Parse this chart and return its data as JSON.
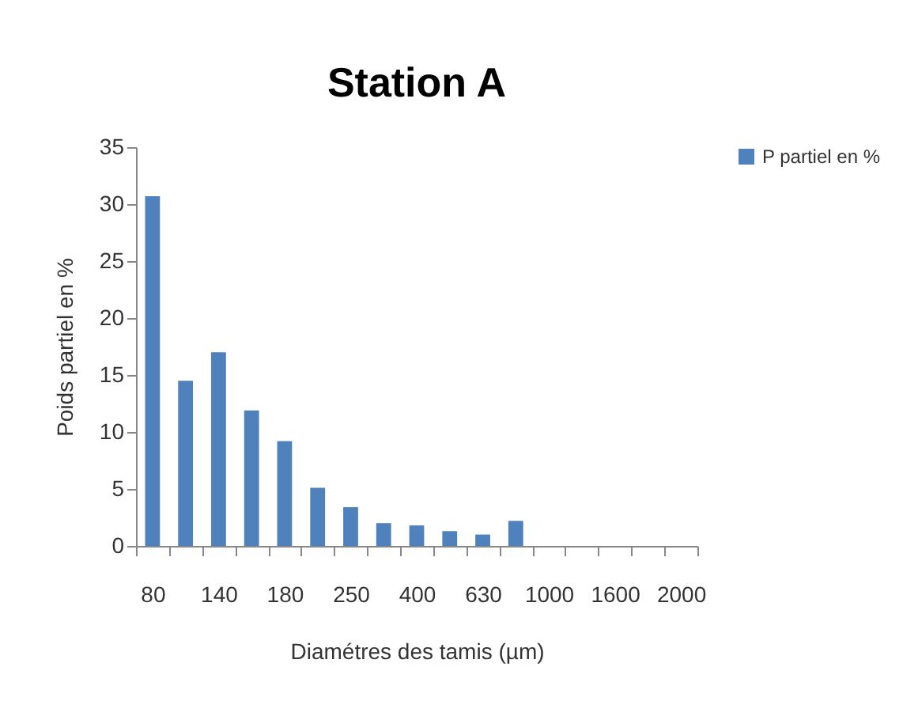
{
  "chart_data": {
    "type": "bar",
    "title": "Station A",
    "xlabel": "Diamétres des tamis (µm)",
    "ylabel": "Poids partiel en %",
    "categories": [
      "80",
      null,
      "140",
      null,
      "180",
      null,
      "250",
      null,
      "400",
      null,
      "630",
      null,
      "1000",
      null,
      "1600",
      null,
      "2000"
    ],
    "series": [
      {
        "name": "P partiel en %",
        "color": "#4f81bd",
        "values": [
          30.7,
          14.5,
          17.0,
          11.9,
          9.2,
          5.1,
          3.4,
          2.0,
          1.8,
          1.3,
          1.0,
          2.2,
          0,
          0,
          0,
          0,
          0
        ]
      }
    ],
    "ylim": [
      0,
      35
    ],
    "yticks": [
      0,
      5,
      10,
      15,
      20,
      25,
      30,
      35
    ],
    "legend": "right"
  }
}
